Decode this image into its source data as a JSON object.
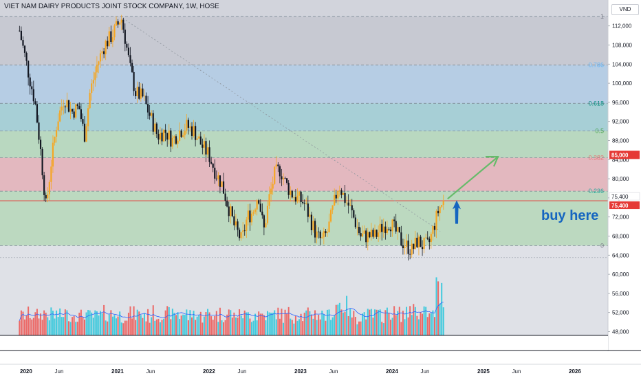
{
  "header": {
    "title": "VIET NAM DAIRY PRODUCTS JOINT STOCK COMPANY, 1W, HOSE"
  },
  "scale_button": {
    "label": "VND"
  },
  "annotation": {
    "text": "buy here",
    "color": "#1565c0"
  },
  "colors": {
    "candle_up": "#f5a623",
    "candle_down": "#131722",
    "vol_up": "#26c6da",
    "vol_down": "#ef5350",
    "vol_ma": "#2962ff",
    "support_line": "#e53935",
    "target_arrow": "#66bb6a",
    "buy_arrow": "#1565c0"
  },
  "chart_data": {
    "type": "candlestick",
    "title": "VIET NAM DAIRY PRODUCTS JOINT STOCK COMPANY, 1W, HOSE",
    "ylim": [
      47000,
      115500
    ],
    "y_ticks": [
      48000,
      52000,
      56000,
      60000,
      64000,
      68000,
      72000,
      76000,
      80000,
      84000,
      88000,
      92000,
      96000,
      100000,
      104000,
      108000,
      112000
    ],
    "y_tick_labels": [
      "48,000",
      "52,000",
      "56,000",
      "60,000",
      "64,000",
      "68,000",
      "72,000",
      "76,000",
      "80,000",
      "84,000",
      "88,000",
      "92,000",
      "96,000",
      "100,000",
      "104,000",
      "108,000",
      "112,000"
    ],
    "x_labels": [
      "2020",
      "Jun",
      "2021",
      "Jun",
      "2022",
      "Jun",
      "2023",
      "Jun",
      "2024",
      "Jun",
      "2025",
      "Jun",
      "2026"
    ],
    "fibonacci": [
      {
        "level": "1",
        "price": 114000
      },
      {
        "level": "0.786",
        "price": 103800
      },
      {
        "level": "0.618",
        "price": 95800
      },
      {
        "level": "0.5",
        "price": 90000
      },
      {
        "level": "0.382",
        "price": 84400
      },
      {
        "level": "0.236",
        "price": 77400
      },
      {
        "level": "0",
        "price": 66000
      }
    ],
    "price_path": [
      [
        2019.95,
        111000
      ],
      [
        2020.05,
        102000
      ],
      [
        2020.12,
        96000
      ],
      [
        2020.18,
        86000
      ],
      [
        2020.24,
        74000
      ],
      [
        2020.3,
        84000
      ],
      [
        2020.36,
        92000
      ],
      [
        2020.44,
        97000
      ],
      [
        2020.52,
        94000
      ],
      [
        2020.6,
        95000
      ],
      [
        2020.66,
        89000
      ],
      [
        2020.72,
        98000
      ],
      [
        2020.8,
        104000
      ],
      [
        2020.88,
        108000
      ],
      [
        2020.96,
        110000
      ],
      [
        2021.02,
        112000
      ],
      [
        2021.06,
        114000
      ],
      [
        2021.1,
        110000
      ],
      [
        2021.16,
        103000
      ],
      [
        2021.22,
        98000
      ],
      [
        2021.3,
        97000
      ],
      [
        2021.38,
        93000
      ],
      [
        2021.46,
        89000
      ],
      [
        2021.54,
        90000
      ],
      [
        2021.62,
        88000
      ],
      [
        2021.7,
        90000
      ],
      [
        2021.78,
        91000
      ],
      [
        2021.86,
        90000
      ],
      [
        2021.94,
        87000
      ],
      [
        2022.02,
        85000
      ],
      [
        2022.1,
        81000
      ],
      [
        2022.16,
        79000
      ],
      [
        2022.22,
        75000
      ],
      [
        2022.3,
        70000
      ],
      [
        2022.38,
        67000
      ],
      [
        2022.44,
        72000
      ],
      [
        2022.5,
        73000
      ],
      [
        2022.56,
        77000
      ],
      [
        2022.62,
        69000
      ],
      [
        2022.68,
        76000
      ],
      [
        2022.74,
        81000
      ],
      [
        2022.8,
        82000
      ],
      [
        2022.86,
        79000
      ],
      [
        2022.92,
        77000
      ],
      [
        2022.98,
        76000
      ],
      [
        2023.06,
        75000
      ],
      [
        2023.14,
        71000
      ],
      [
        2023.2,
        68000
      ],
      [
        2023.26,
        67000
      ],
      [
        2023.32,
        69000
      ],
      [
        2023.38,
        74000
      ],
      [
        2023.44,
        79000
      ],
      [
        2023.5,
        76000
      ],
      [
        2023.56,
        74000
      ],
      [
        2023.62,
        71000
      ],
      [
        2023.68,
        68000
      ],
      [
        2023.76,
        68000
      ],
      [
        2023.84,
        68000
      ],
      [
        2023.92,
        70000
      ],
      [
        2024.0,
        71000
      ],
      [
        2024.06,
        69000
      ],
      [
        2024.12,
        67000
      ],
      [
        2024.18,
        66000
      ],
      [
        2024.24,
        65000
      ],
      [
        2024.3,
        67000
      ],
      [
        2024.36,
        66000
      ],
      [
        2024.42,
        66000
      ],
      [
        2024.48,
        70000
      ],
      [
        2024.54,
        74000
      ],
      [
        2024.6,
        75400
      ]
    ],
    "last_price": {
      "value": 75400,
      "label": "75,400"
    },
    "target_price": {
      "value": 85000,
      "label": "85,000"
    },
    "volume_ma_note": "relative volume bars with moving average"
  }
}
